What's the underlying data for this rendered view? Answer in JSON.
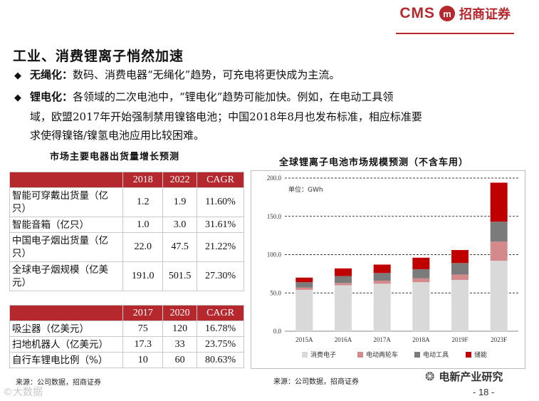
{
  "header": {
    "logo_text": "CMS",
    "logo_mark": "m",
    "logo_cn": "招商证券"
  },
  "slide_title": "工业、消费锂离子悄然加速",
  "bullets": [
    {
      "marker": "◆",
      "lead": "无绳化：",
      "text": "数码、消费电器“无绳化”趋势，可充电将更快成为主流。"
    },
    {
      "marker": "◆",
      "lead": "锂电化：",
      "text": "各领域的二次电池中，“锂电化”趋势可能加快。例如，在电动工具领",
      "cont1": "域，欧盟2017年开始强制禁用镍铬电池；中国2018年8月也发布标准，相应标准要",
      "cont2": "求使得镍铬/镍氢电池应用比较困难。"
    }
  ],
  "table_title": "市场主要电器出货量增长预测",
  "table1": {
    "headers": [
      "",
      "2018",
      "2022",
      "CAGR"
    ],
    "rows": [
      {
        "name": "智能可穿戴出货量（亿只）",
        "v1": "1.2",
        "v2": "1.9",
        "cagr": "11.60%"
      },
      {
        "name": "智能音箱（亿只）",
        "v1": "1.0",
        "v2": "3.0",
        "cagr": "31.61%"
      },
      {
        "name": "中国电子烟出货量（亿只）",
        "v1": "22.0",
        "v2": "47.5",
        "cagr": "21.22%"
      },
      {
        "name": "全球电子烟规模（亿美元）",
        "v1": "191.0",
        "v2": "501.5",
        "cagr": "27.30%"
      }
    ]
  },
  "table2": {
    "headers": [
      "",
      "2017",
      "2020",
      "CAGR"
    ],
    "rows": [
      {
        "name": "吸尘器（亿美元）",
        "v1": "75",
        "v2": "120",
        "cagr": "16.78%"
      },
      {
        "name": "扫地机器人（亿美元）",
        "v1": "17.3",
        "v2": "33",
        "cagr": "23.75%"
      },
      {
        "name": "自行车锂电比例（%）",
        "v1": "10",
        "v2": "60",
        "cagr": "80.63%"
      }
    ]
  },
  "source_left": "来源：公司数据，招商证券",
  "source_right": "来源：公司数据，招商证券",
  "chart_title": "全球锂离子电池市场规模预测（不含车用）",
  "chart_data": {
    "type": "bar",
    "stacked": true,
    "title": "全球锂离子电池市场规模预测（不含车用）",
    "unit_label": "单位：GWh",
    "categories": [
      "2015A",
      "2016A",
      "2017A",
      "2018A",
      "2019F",
      "2023F"
    ],
    "ylim": [
      0,
      200
    ],
    "yticks": [
      "0.0",
      "50.0",
      "100.0",
      "150.0",
      "200.0"
    ],
    "grid": true,
    "legend_position": "bottom",
    "series": [
      {
        "name": "消费电子",
        "color": "#d9d9d9",
        "values": [
          54,
          60,
          62,
          64,
          67,
          92
        ]
      },
      {
        "name": "电动两轮车",
        "color": "#d48a8a",
        "values": [
          3,
          3,
          4,
          5,
          7,
          25
        ]
      },
      {
        "name": "电动工具",
        "color": "#7b7b7b",
        "values": [
          7,
          9,
          10,
          12,
          15,
          26
        ]
      },
      {
        "name": "储能",
        "color": "#c00000",
        "values": [
          6,
          10,
          11,
          15,
          17,
          51
        ]
      }
    ]
  },
  "footer": {
    "wechat_name": "电新产业研究",
    "page": "- 18 -",
    "watermark": "©大数据"
  }
}
